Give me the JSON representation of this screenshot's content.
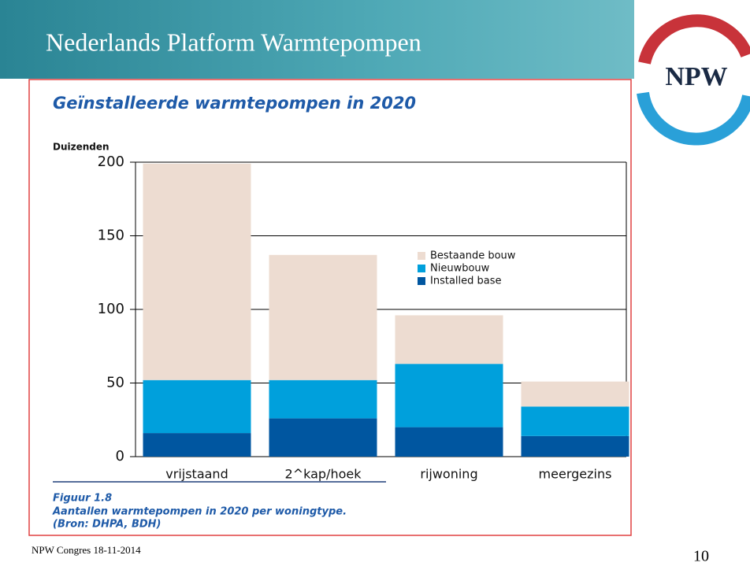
{
  "slide_title": "Nederlands Platform Warmtepompen",
  "logo_text": "NPW",
  "footer": "NPW Congres 18-11-2014",
  "page_number": "10",
  "caption": {
    "figure": "Figuur 1.8",
    "text": "Aantallen warmtepompen in 2020 per woningtype.",
    "source": "(Bron: DHPA, BDH)"
  },
  "chart_data": {
    "type": "stacked_bar",
    "title": "Geïnstalleerde warmtepompen in 2020",
    "ylabel": "Duizenden",
    "categories": [
      "vrijstaand",
      "2^kap/hoek",
      "rijwoning",
      "meergezins"
    ],
    "series": [
      {
        "name": "Installed base",
        "color": "#0056a0",
        "values": [
          16,
          26,
          20,
          14
        ]
      },
      {
        "name": "Nieuwbouw",
        "color": "#00a0dc",
        "values": [
          36,
          26,
          43,
          20
        ]
      },
      {
        "name": "Bestaande bouw",
        "color": "#eddcd1",
        "values": [
          147,
          85,
          33,
          17
        ]
      }
    ],
    "ylim": [
      0,
      200
    ],
    "yticks": [
      0,
      50,
      100,
      150,
      200
    ],
    "grid": true
  }
}
